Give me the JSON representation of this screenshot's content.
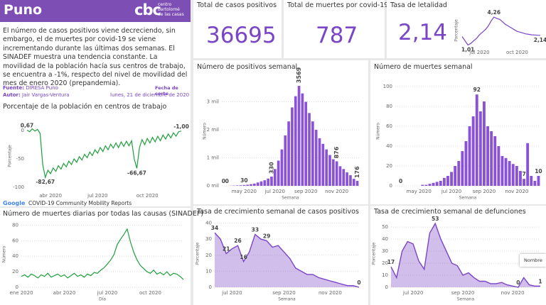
{
  "header": {
    "title": "Puno",
    "logo_mark": "cbc",
    "logo_text": [
      "centro",
      "bartolomé",
      "de las casas"
    ]
  },
  "intro": "El número de casos positivos viene decreciendo, sin embargo, el de muertes por covid-19 se viene incrementando durante las últimas dos semanas. El SINADEF muestra una tendencia constante.  La movilidad de la población hacía sus centros de trabajo, se encuentra a -1%, respecto del nivel de movilidad del mes de enero 2020 (prepandemia).",
  "source": {
    "fuente_label": "Fuente:",
    "fuente": "DIRESA Puno",
    "autor_label": "Autor:",
    "autor": "Jair Vargas-Ventura",
    "fecha_label": "Fecha de corte",
    "fecha": "lunes, 21 de diciembre de 2020"
  },
  "kpis": [
    {
      "title": "Total de casos positivos",
      "value": 36695
    },
    {
      "title": "Total de muertes por covid-19",
      "value": 787
    },
    {
      "value": {
        "value": 2.14,
        "label": "2,14"
      }
    }
  ],
  "tooltip": "Nombre",
  "chart_data": [
    {
      "type": "line",
      "title": "Porcentaje de la población en centros de trabajo",
      "ylabel": "Porcentaje",
      "color": "#1f9e3c",
      "grid": false,
      "source_logo": "Google",
      "source": "COVID-19 Community Mobility Reports",
      "categories": [
        null,
        null,
        null,
        null,
        null,
        null,
        null,
        null,
        null,
        "abr 2020",
        null,
        null,
        null,
        null,
        null,
        null,
        null,
        null,
        null,
        null,
        null,
        null,
        null,
        null,
        null,
        null,
        null,
        "jul 2020",
        null,
        null,
        null,
        null,
        null,
        null,
        null,
        null,
        null,
        null,
        null,
        null,
        null,
        null,
        null,
        null,
        null,
        null,
        "oct 2020",
        null,
        null,
        null,
        null,
        null,
        null,
        null,
        null,
        null,
        null,
        null,
        null,
        null
      ],
      "values": [
        0.67,
        -2,
        3,
        -1,
        2,
        -5,
        -60,
        -82.67,
        -70,
        -76,
        -66,
        -72,
        -62,
        -68,
        -58,
        -64,
        -54,
        -60,
        -50,
        -56,
        -46,
        -52,
        -42,
        -48,
        -38,
        -44,
        -34,
        -40,
        -30,
        -37,
        -27,
        -34,
        -24,
        -31,
        -22,
        -30,
        -20,
        -28,
        -19,
        -27,
        -18,
        -50,
        -66.67,
        -30,
        -16,
        -25,
        -14,
        -22,
        -12,
        -20,
        -10,
        -18,
        -8,
        -15,
        -6,
        -13,
        -4,
        -10,
        -2,
        -1.0
      ],
      "value_labels": [
        "0,67",
        null,
        null,
        null,
        null,
        null,
        null,
        "-82,67",
        null,
        null,
        null,
        null,
        null,
        null,
        null,
        null,
        null,
        null,
        null,
        null,
        null,
        null,
        null,
        null,
        null,
        null,
        null,
        null,
        null,
        null,
        null,
        null,
        null,
        null,
        null,
        null,
        null,
        null,
        null,
        null,
        null,
        null,
        "-66,67",
        null,
        null,
        null,
        null,
        null,
        null,
        null,
        null,
        null,
        null,
        null,
        null,
        null,
        null,
        null,
        null,
        "-1,00"
      ],
      "ylim": [
        -105,
        15
      ],
      "yticks": [
        0,
        -50,
        -100
      ]
    },
    {
      "type": "line",
      "title": "Número de muertes diarias por todas las causas (SINADEF)",
      "xlabel": "Día",
      "ylabel": "Número",
      "color": "#1f9e3c",
      "grid": true,
      "categories": [
        "ene 2020",
        null,
        null,
        null,
        null,
        null,
        null,
        null,
        null,
        null,
        null,
        null,
        null,
        "abr 2020",
        null,
        null,
        null,
        null,
        null,
        null,
        null,
        null,
        null,
        null,
        null,
        null,
        "jul 2020",
        null,
        null,
        null,
        null,
        null,
        null,
        null,
        null,
        null,
        null,
        null,
        null,
        "oct 2020",
        null,
        null,
        null,
        null,
        null,
        null,
        null,
        null,
        null,
        null
      ],
      "values": [
        14,
        16,
        13,
        17,
        15,
        12,
        16,
        14,
        18,
        13,
        15,
        17,
        14,
        16,
        12,
        15,
        18,
        14,
        16,
        13,
        17,
        15,
        19,
        18,
        22,
        25,
        30,
        35,
        42,
        55,
        62,
        68,
        75,
        58,
        45,
        35,
        28,
        24,
        20,
        18,
        22,
        17,
        19,
        16,
        20,
        15,
        18,
        17,
        14,
        10
      ],
      "ylim": [
        0,
        85
      ],
      "yticks": [
        0,
        20,
        40,
        60,
        80
      ]
    },
    {
      "type": "line",
      "title": "Tasa de letalidad",
      "ylabel": "Porcentaje",
      "color": "#7a45c6",
      "grid": false,
      "categories": [
        null,
        null,
        null,
        null,
        null,
        null,
        "jul 2020",
        null,
        null,
        null,
        null,
        null,
        null,
        null,
        null,
        null,
        null,
        null,
        null,
        "oct 2020",
        null,
        null,
        null,
        null,
        null,
        null,
        null,
        null
      ],
      "values": [
        2.0,
        1.5,
        1.01,
        1.2,
        1.5,
        1.8,
        2.2,
        2.5,
        2.8,
        3.2,
        3.8,
        4.26,
        4.1,
        4.0,
        3.7,
        3.4,
        3.2,
        3.0,
        2.8,
        2.6,
        2.5,
        2.4,
        2.3,
        2.25,
        2.2,
        2.18,
        2.15,
        2.14
      ],
      "value_labels": [
        null,
        null,
        "1,01",
        null,
        null,
        null,
        null,
        null,
        null,
        null,
        null,
        "4,26",
        null,
        null,
        null,
        null,
        null,
        null,
        null,
        null,
        null,
        null,
        null,
        null,
        null,
        null,
        null,
        "2,14"
      ],
      "ylim": [
        0.8,
        4.6
      ]
    },
    {
      "type": "bar",
      "title": "Número de positivos semanal",
      "xlabel": "Semana",
      "ylabel": "Número",
      "color": "#8a52d6",
      "grid": true,
      "categories": [
        null,
        null,
        null,
        null,
        null,
        null,
        "may 2020",
        null,
        null,
        null,
        null,
        null,
        null,
        null,
        null,
        "jul 2020",
        null,
        null,
        null,
        null,
        null,
        null,
        null,
        null,
        "sep 2020",
        null,
        null,
        null,
        null,
        null,
        null,
        null,
        null,
        "nov 2020",
        null,
        null,
        null,
        null,
        null,
        null
      ],
      "values": [
        0,
        0,
        5,
        10,
        15,
        20,
        30,
        40,
        60,
        80,
        120,
        160,
        200,
        260,
        330,
        600,
        900,
        1300,
        1800,
        2300,
        2800,
        3200,
        3569,
        3300,
        3000,
        2600,
        2300,
        2000,
        1700,
        1500,
        1300,
        1100,
        950,
        876,
        700,
        600,
        480,
        380,
        250,
        176
      ],
      "value_labels": [
        "0",
        "0",
        null,
        null,
        null,
        null,
        "30",
        null,
        null,
        null,
        null,
        null,
        null,
        null,
        "330",
        null,
        null,
        null,
        null,
        null,
        null,
        null,
        "3569",
        null,
        null,
        null,
        null,
        null,
        null,
        null,
        null,
        null,
        null,
        "876",
        null,
        null,
        null,
        null,
        null,
        "176"
      ],
      "ylim": [
        0,
        3900
      ],
      "yticks": [
        {
          "value": 0,
          "label": "0 mil"
        },
        {
          "value": 1000,
          "label": "1 mil"
        },
        {
          "value": 2000,
          "label": "2 mil"
        },
        {
          "value": 3000,
          "label": "3 mil"
        }
      ]
    },
    {
      "type": "bar",
      "title": "Número de muertes semanal",
      "xlabel": "Semana",
      "ylabel": "Número",
      "color": "#8a52d6",
      "grid": true,
      "categories": [
        null,
        null,
        null,
        null,
        null,
        null,
        "may 2020",
        null,
        null,
        null,
        null,
        null,
        null,
        null,
        null,
        "jul 2020",
        null,
        null,
        null,
        null,
        null,
        null,
        null,
        null,
        "sep 2020",
        null,
        null,
        null,
        null,
        null,
        null,
        null,
        null,
        "nov 2020",
        null,
        null,
        null,
        null,
        null,
        null
      ],
      "values": [
        0,
        0,
        0,
        0,
        0,
        0,
        0,
        1,
        1,
        2,
        3,
        4,
        5,
        8,
        10,
        14,
        20,
        25,
        35,
        45,
        60,
        70,
        92,
        75,
        85,
        60,
        55,
        50,
        40,
        30,
        28,
        25,
        22,
        20,
        15,
        7,
        43,
        10,
        5,
        10
      ],
      "value_labels": [
        null,
        "0",
        null,
        null,
        null,
        null,
        null,
        null,
        null,
        null,
        null,
        null,
        null,
        null,
        null,
        null,
        null,
        null,
        null,
        null,
        null,
        null,
        "92",
        null,
        null,
        null,
        null,
        null,
        null,
        null,
        null,
        null,
        null,
        null,
        null,
        "7",
        null,
        null,
        null,
        "10"
      ],
      "ylim": [
        0,
        110
      ],
      "yticks": [
        0,
        20,
        40,
        60,
        80,
        100
      ]
    },
    {
      "type": "area",
      "title": "Tasa de crecimiento semanal de casos positivos",
      "xlabel": "Semana",
      "ylabel": "Porcentaje",
      "color": "#7a45c6",
      "grid": true,
      "categories": [
        null,
        null,
        null,
        "jul 2020",
        null,
        null,
        null,
        null,
        null,
        null,
        null,
        null,
        "sep 2020",
        null,
        null,
        null,
        null,
        null,
        null,
        null,
        "nov 2020",
        null,
        null,
        null,
        null,
        null
      ],
      "values": [
        34,
        30,
        21,
        24,
        26,
        16,
        22,
        33,
        30,
        29,
        25,
        26,
        22,
        18,
        12,
        10,
        8,
        8,
        6,
        5,
        4,
        3,
        2,
        1,
        1,
        0
      ],
      "value_labels": [
        "34",
        null,
        "21",
        null,
        "26",
        "16",
        null,
        "33",
        null,
        "29",
        null,
        null,
        null,
        null,
        null,
        null,
        null,
        null,
        null,
        null,
        null,
        null,
        null,
        null,
        null,
        "0"
      ],
      "ylim": [
        0,
        42
      ],
      "yticks": [
        0,
        10,
        20,
        30,
        40
      ]
    },
    {
      "type": "area",
      "title": "Tasa de crecimiento semanal de defunciones",
      "xlabel": "Semana",
      "ylabel": "Porcentaje",
      "color": "#7a45c6",
      "grid": true,
      "categories": [
        null,
        null,
        null,
        null,
        "jul 2020",
        null,
        null,
        null,
        null,
        null,
        null,
        null,
        null,
        "sep 2020",
        null,
        null,
        null,
        null,
        null,
        null,
        null,
        null,
        "nov 2020",
        null,
        null,
        null,
        null,
        null
      ],
      "values": [
        17,
        8,
        30,
        38,
        36,
        22,
        15,
        45,
        53,
        40,
        30,
        20,
        18,
        10,
        12,
        8,
        5,
        5,
        3,
        3,
        4,
        2,
        1,
        0,
        8,
        2,
        1,
        1
      ],
      "value_labels": [
        "17",
        null,
        null,
        null,
        null,
        null,
        null,
        null,
        "53",
        null,
        null,
        null,
        null,
        null,
        null,
        null,
        null,
        null,
        null,
        null,
        null,
        null,
        null,
        "0",
        null,
        null,
        null,
        "1"
      ],
      "ylim": [
        0,
        56
      ],
      "yticks": [
        0,
        10,
        20,
        30,
        40,
        50
      ]
    }
  ]
}
